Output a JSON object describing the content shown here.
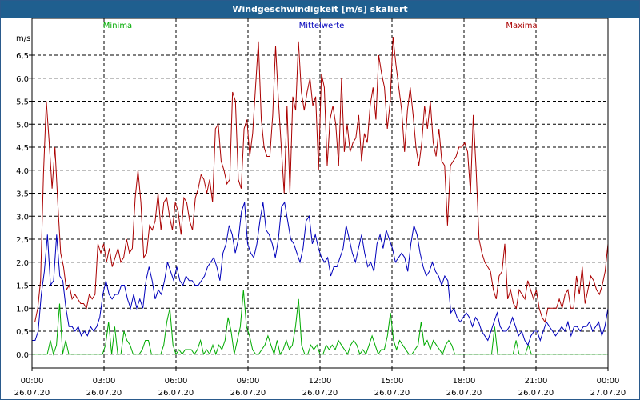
{
  "window": {
    "title": "Windgeschwindigkeit [m/s] skaliert"
  },
  "colors": {
    "minima": "#00aa00",
    "mittel": "#0000bb",
    "maxima": "#aa0000",
    "title_bg": "#1f5f8f"
  },
  "chart_data": {
    "type": "line",
    "title": "Windgeschwindigkeit [m/s] skaliert",
    "ylabel": "m/s",
    "ylim": [
      -0.3,
      7.3
    ],
    "yticks": [
      "0,0",
      "0,5",
      "1,0",
      "1,5",
      "2,0",
      "2,5",
      "3,0",
      "3,5",
      "4,0",
      "4,5",
      "5,0",
      "5,5",
      "6,0",
      "6,5"
    ],
    "ytick_values": [
      0,
      0.5,
      1,
      1.5,
      2,
      2.5,
      3,
      3.5,
      4,
      4.5,
      5,
      5.5,
      6,
      6.5
    ],
    "xlim": [
      0,
      24
    ],
    "xticks": [
      {
        "time": "00:00",
        "date": "26.07.20"
      },
      {
        "time": "03:00",
        "date": "26.07.20"
      },
      {
        "time": "06:00",
        "date": "26.07.20"
      },
      {
        "time": "09:00",
        "date": "26.07.20"
      },
      {
        "time": "12:00",
        "date": "26.07.20"
      },
      {
        "time": "15:00",
        "date": "26.07.20"
      },
      {
        "time": "18:00",
        "date": "26.07.20"
      },
      {
        "time": "21:00",
        "date": "26.07.20"
      },
      {
        "time": "00:00",
        "date": "27.07.20"
      }
    ],
    "grid": true,
    "series": [
      {
        "name": "Minima",
        "values": [
          0,
          0,
          0,
          0,
          0,
          0,
          0.3,
          0,
          0.2,
          1.1,
          0,
          0.3,
          0,
          0,
          0,
          0,
          0,
          0,
          0,
          0,
          0,
          0,
          0,
          0,
          0.2,
          0.7,
          0,
          0.6,
          0,
          0,
          0.5,
          0.3,
          0.2,
          0,
          0,
          0,
          0.1,
          0.3,
          0.3,
          0,
          0,
          0,
          0,
          0.2,
          0.7,
          1.0,
          0.2,
          0,
          0.1,
          0,
          0.1,
          0.1,
          0.1,
          0,
          0.1,
          0.3,
          0,
          0.1,
          0,
          0.2,
          0,
          0.2,
          0.1,
          0.3,
          0.8,
          0.5,
          0,
          0.3,
          0.6,
          1.4,
          0.6,
          0.4,
          0.1,
          0,
          0,
          0.1,
          0.2,
          0.4,
          0.2,
          0,
          0.3,
          0,
          0.1,
          0.3,
          0.1,
          0.2,
          0.6,
          1.2,
          0.2,
          0,
          0,
          0.2,
          0.1,
          0.2,
          0,
          0,
          0.2,
          0.1,
          0.2,
          0.1,
          0.3,
          0.2,
          0.1,
          0,
          0.2,
          0.3,
          0.2,
          0,
          0.1,
          0,
          0.2,
          0.4,
          0.2,
          0,
          0.1,
          0.1,
          0.4,
          0.9,
          0.3,
          0.1,
          0.3,
          0.2,
          0.1,
          0,
          0,
          0.1,
          0.2,
          0.7,
          0.2,
          0.3,
          0.1,
          0.3,
          0.2,
          0.1,
          0,
          0.2,
          0.3,
          0.2,
          0,
          0,
          0,
          0,
          0,
          0,
          0,
          0,
          0,
          0,
          0,
          0,
          0,
          0.6,
          0,
          0,
          0,
          0,
          0,
          0,
          0.3,
          0,
          0,
          0,
          0.2,
          0,
          0,
          0,
          0,
          0,
          0,
          0,
          0,
          0,
          0,
          0,
          0,
          0,
          0,
          0,
          0,
          0,
          0,
          0,
          0,
          0,
          0,
          0,
          0,
          0,
          0
        ]
      },
      {
        "name": "Mittelwerte",
        "values": [
          0.3,
          0.3,
          0.5,
          1.3,
          1.8,
          2.6,
          1.5,
          1.6,
          2.6,
          1.7,
          1.6,
          1.0,
          0.6,
          0.6,
          0.5,
          0.6,
          0.4,
          0.5,
          0.4,
          0.6,
          0.5,
          0.6,
          0.8,
          1.3,
          1.6,
          1.3,
          1.2,
          1.3,
          1.3,
          1.5,
          1.5,
          1.2,
          1.0,
          1.3,
          1.0,
          1.2,
          1.0,
          1.6,
          1.9,
          1.6,
          1.2,
          1.4,
          1.3,
          1.6,
          2.0,
          1.8,
          1.6,
          1.9,
          1.6,
          1.5,
          1.7,
          1.6,
          1.6,
          1.5,
          1.5,
          1.6,
          1.7,
          1.9,
          2.0,
          2.1,
          1.9,
          1.6,
          2.2,
          2.4,
          2.8,
          2.6,
          2.2,
          2.5,
          3.1,
          3.3,
          2.4,
          2.2,
          2.1,
          2.4,
          2.9,
          3.3,
          2.7,
          2.6,
          2.4,
          2.1,
          2.5,
          3.2,
          3.3,
          2.9,
          2.5,
          2.4,
          2.2,
          2.0,
          2.3,
          2.9,
          3.0,
          2.4,
          2.6,
          2.3,
          2.1,
          2.0,
          2.1,
          1.7,
          1.9,
          1.9,
          2.1,
          2.3,
          2.8,
          2.5,
          2.2,
          2.0,
          2.3,
          2.6,
          2.2,
          1.9,
          2.0,
          1.8,
          2.4,
          2.6,
          2.3,
          2.7,
          2.5,
          2.3,
          2.0,
          2.1,
          2.2,
          2.1,
          1.8,
          2.4,
          2.8,
          2.6,
          2.2,
          1.9,
          1.7,
          1.8,
          2.0,
          1.8,
          1.7,
          1.5,
          1.7,
          1.6,
          0.9,
          1.0,
          0.8,
          0.7,
          0.8,
          0.9,
          0.8,
          0.6,
          0.8,
          0.7,
          0.5,
          0.4,
          0.3,
          0.5,
          0.7,
          0.9,
          0.6,
          0.5,
          0.5,
          0.6,
          0.8,
          0.6,
          0.4,
          0.5,
          0.3,
          0.2,
          0.4,
          0.5,
          0.5,
          0.3,
          0.5,
          0.7,
          0.6,
          0.5,
          0.4,
          0.5,
          0.6,
          0.5,
          0.7,
          0.4,
          0.6,
          0.6,
          0.5,
          0.6,
          0.6,
          0.7,
          0.5,
          0.6,
          0.7,
          0.4,
          0.6,
          1.0
        ]
      },
      {
        "name": "Maxima",
        "values": [
          0.7,
          0.7,
          1.0,
          1.6,
          3.9,
          5.5,
          4.6,
          3.6,
          4.5,
          3.3,
          2.2,
          1.9,
          1.4,
          1.5,
          1.2,
          1.3,
          1.2,
          1.1,
          1.1,
          1.0,
          1.3,
          1.2,
          1.3,
          2.4,
          2.2,
          2.4,
          2.0,
          2.3,
          1.9,
          2.1,
          2.3,
          2.0,
          2.1,
          2.5,
          2.2,
          2.3,
          3.4,
          4.0,
          3.3,
          2.1,
          2.2,
          2.8,
          2.7,
          2.9,
          3.5,
          2.7,
          3.3,
          3.4,
          3.0,
          2.7,
          3.3,
          3.1,
          2.6,
          3.4,
          3.3,
          2.9,
          2.7,
          3.4,
          3.6,
          3.9,
          3.8,
          3.5,
          3.8,
          3.3,
          4.9,
          5.0,
          4.2,
          4.0,
          3.7,
          3.8,
          5.7,
          5.5,
          3.8,
          3.6,
          4.9,
          5.1,
          4.3,
          4.8,
          5.8,
          6.8,
          5.1,
          4.5,
          4.3,
          4.3,
          5.2,
          6.7,
          5.5,
          4.5,
          3.5,
          5.4,
          3.5,
          5.6,
          5.3,
          6.8,
          5.7,
          5.3,
          5.7,
          6.0,
          5.4,
          5.6,
          4.0,
          6.1,
          5.8,
          4.1,
          5.1,
          5.4,
          5.0,
          4.1,
          6.0,
          4.4,
          5.0,
          4.4,
          4.6,
          4.7,
          5.2,
          4.2,
          4.8,
          4.6,
          5.4,
          5.8,
          5.1,
          6.5,
          6.1,
          5.8,
          4.9,
          5.5,
          6.9,
          6.3,
          5.8,
          5.3,
          4.4,
          5.3,
          5.8,
          5.2,
          4.5,
          4.1,
          4.6,
          5.4,
          4.9,
          5.5,
          4.6,
          4.3,
          4.9,
          4.2,
          4.1,
          2.8,
          4.1,
          4.2,
          4.3,
          4.5,
          4.5,
          4.6,
          4.4,
          3.5,
          5.2,
          4.0,
          2.5,
          2.2,
          2.0,
          1.9,
          1.8,
          1.4,
          1.2,
          1.7,
          1.8,
          2.4,
          1.2,
          1.4,
          1.1,
          1.0,
          1.4,
          1.3,
          1.2,
          1.6,
          1.4,
          1.2,
          1.4,
          1.0,
          0.8,
          0.7,
          1.0,
          1.0,
          1.0,
          1.0,
          1.2,
          1.0,
          1.3,
          1.4,
          1.0,
          1.0,
          1.7,
          1.3,
          1.9,
          1.1,
          1.4,
          1.7,
          1.6,
          1.4,
          1.3,
          1.5,
          1.8,
          2.4
        ]
      }
    ]
  }
}
